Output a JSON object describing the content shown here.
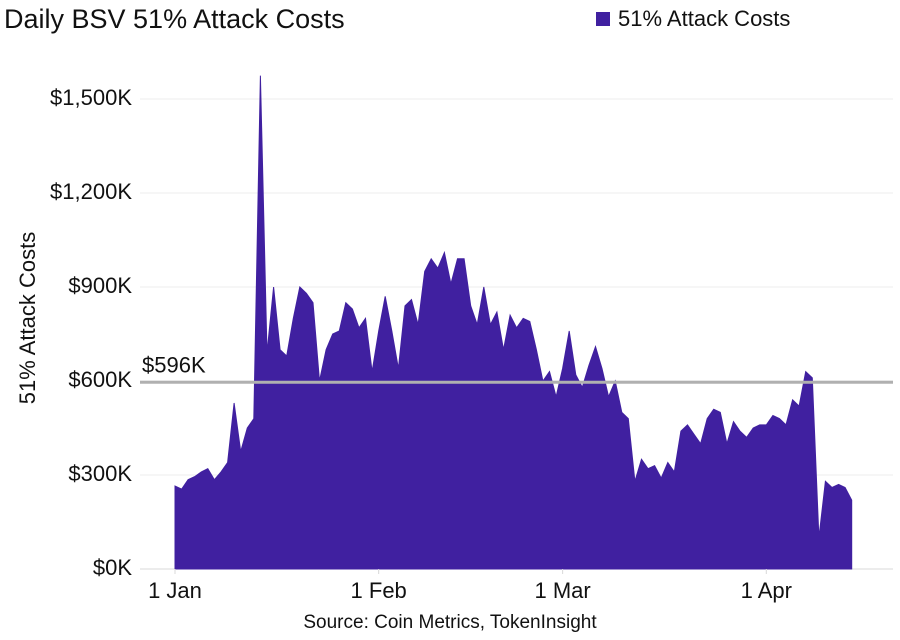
{
  "chart_data": {
    "type": "area",
    "title": "Daily BSV 51% Attack Costs",
    "ylabel": "51% Attack Costs",
    "xlabel": "",
    "source": "Source: Coin Metrics, TokenInsight",
    "ylim": [
      0,
      1650
    ],
    "xlim": [
      -5,
      110
    ],
    "grid": true,
    "legend_position": "top-right",
    "y_ticks": [
      {
        "value": 0,
        "label": "$0K"
      },
      {
        "value": 300,
        "label": "$300K"
      },
      {
        "value": 600,
        "label": "$600K"
      },
      {
        "value": 900,
        "label": "$900K"
      },
      {
        "value": 1200,
        "label": "$1,200K"
      },
      {
        "value": 1500,
        "label": "$1,500K"
      }
    ],
    "x_ticks": [
      {
        "value": 0,
        "label": "1 Jan"
      },
      {
        "value": 31,
        "label": "1 Feb"
      },
      {
        "value": 59,
        "label": "1 Mar"
      },
      {
        "value": 90,
        "label": "1 Apr"
      }
    ],
    "series": [
      {
        "name": "51% Attack Costs",
        "color": "#4020a0",
        "values": [
          265,
          255,
          285,
          295,
          310,
          320,
          285,
          310,
          340,
          530,
          375,
          450,
          480,
          1575,
          690,
          900,
          700,
          680,
          800,
          900,
          880,
          850,
          600,
          700,
          750,
          760,
          850,
          830,
          770,
          800,
          630,
          760,
          870,
          760,
          640,
          840,
          860,
          780,
          950,
          990,
          960,
          1010,
          910,
          990,
          990,
          840,
          780,
          900,
          780,
          820,
          700,
          810,
          770,
          800,
          790,
          700,
          600,
          630,
          550,
          640,
          760,
          620,
          580,
          650,
          710,
          640,
          550,
          600,
          500,
          480,
          280,
          350,
          320,
          330,
          290,
          340,
          310,
          440,
          460,
          430,
          400,
          480,
          510,
          500,
          400,
          470,
          440,
          420,
          450,
          460,
          460,
          490,
          480,
          460,
          540,
          520,
          630,
          610,
          100,
          280,
          260,
          270,
          260,
          220
        ]
      }
    ],
    "reference_line": {
      "value": 596,
      "label": "$596K",
      "color": "#b0b0b0"
    }
  }
}
